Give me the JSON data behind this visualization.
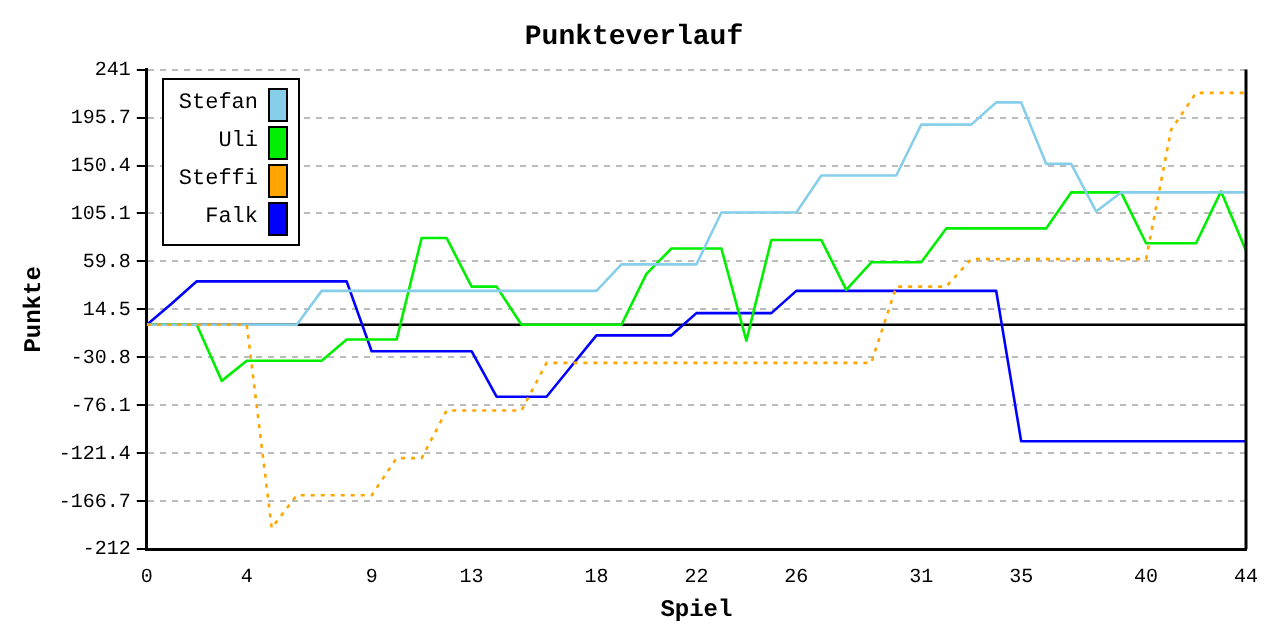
{
  "chart_data": {
    "type": "line",
    "title": "Punkteverlauf",
    "xlabel": "Spiel",
    "ylabel": "Punkte",
    "x": [
      0,
      1,
      2,
      3,
      4,
      5,
      6,
      7,
      8,
      9,
      10,
      11,
      12,
      13,
      14,
      15,
      16,
      17,
      18,
      19,
      20,
      21,
      22,
      23,
      24,
      25,
      26,
      27,
      28,
      29,
      30,
      31,
      32,
      33,
      34,
      35,
      36,
      37,
      38,
      39,
      40,
      41,
      42,
      43,
      44
    ],
    "xlim": [
      0,
      44
    ],
    "xticks": [
      0,
      4,
      9,
      13,
      18,
      22,
      26,
      31,
      35,
      40,
      44
    ],
    "ylim": [
      -212,
      241
    ],
    "yticks": [
      -212,
      -166.7,
      -121.4,
      -76.1,
      -30.8,
      14.5,
      59.8,
      105.1,
      150.4,
      195.7,
      241
    ],
    "grid": "y",
    "legend": "top left",
    "marker": "none",
    "ref_lines": [
      {
        "axis": "y",
        "value": 0,
        "color": "#000000"
      }
    ],
    "series": [
      {
        "name": "Stefan",
        "color": "#87ceeb",
        "line_style": "solid",
        "values": [
          0,
          0,
          0,
          0,
          0,
          0,
          0,
          32,
          32,
          32,
          32,
          32,
          32,
          32,
          32,
          32,
          32,
          32,
          32,
          57,
          57,
          57,
          57,
          106,
          106,
          106,
          106,
          141,
          141,
          141,
          141,
          189,
          189,
          189,
          210,
          210,
          152,
          152,
          107,
          125,
          125,
          125,
          125,
          125,
          125
        ]
      },
      {
        "name": "Uli",
        "color": "#00ee00",
        "line_style": "solid",
        "values": [
          0,
          0,
          0,
          -53,
          -34,
          -34,
          -34,
          -34,
          -14,
          -14,
          -14,
          82,
          82,
          36,
          36,
          0,
          0,
          0,
          0,
          0,
          48,
          72,
          72,
          72,
          -15,
          80,
          80,
          80,
          33,
          59,
          59,
          59,
          91,
          91,
          91,
          91,
          91,
          125,
          125,
          125,
          77,
          77,
          77,
          126,
          70
        ]
      },
      {
        "name": "Steffi",
        "color": "#ffa500",
        "line_style": "dotted",
        "values": [
          0,
          0,
          0,
          0,
          0,
          -192,
          -161,
          -161,
          -161,
          -161,
          -126,
          -126,
          -81,
          -81,
          -81,
          -81,
          -36,
          -36,
          -36,
          -36,
          -36,
          -36,
          -36,
          -36,
          -36,
          -36,
          -36,
          -36,
          -36,
          -36,
          36,
          36,
          36,
          62,
          62,
          62,
          62,
          62,
          62,
          62,
          62,
          184,
          219,
          219,
          219
        ]
      },
      {
        "name": "Falk",
        "color": "#0000ff",
        "line_style": "solid",
        "values": [
          0,
          20,
          41,
          41,
          41,
          41,
          41,
          41,
          41,
          -25,
          -25,
          -25,
          -25,
          -25,
          -68,
          -68,
          -68,
          -39,
          -10,
          -10,
          -10,
          -10,
          11,
          11,
          11,
          11,
          32,
          32,
          32,
          32,
          32,
          32,
          32,
          32,
          32,
          -110,
          -110,
          -110,
          -110,
          -110,
          -110,
          -110,
          -110,
          -110,
          -110
        ]
      }
    ]
  }
}
